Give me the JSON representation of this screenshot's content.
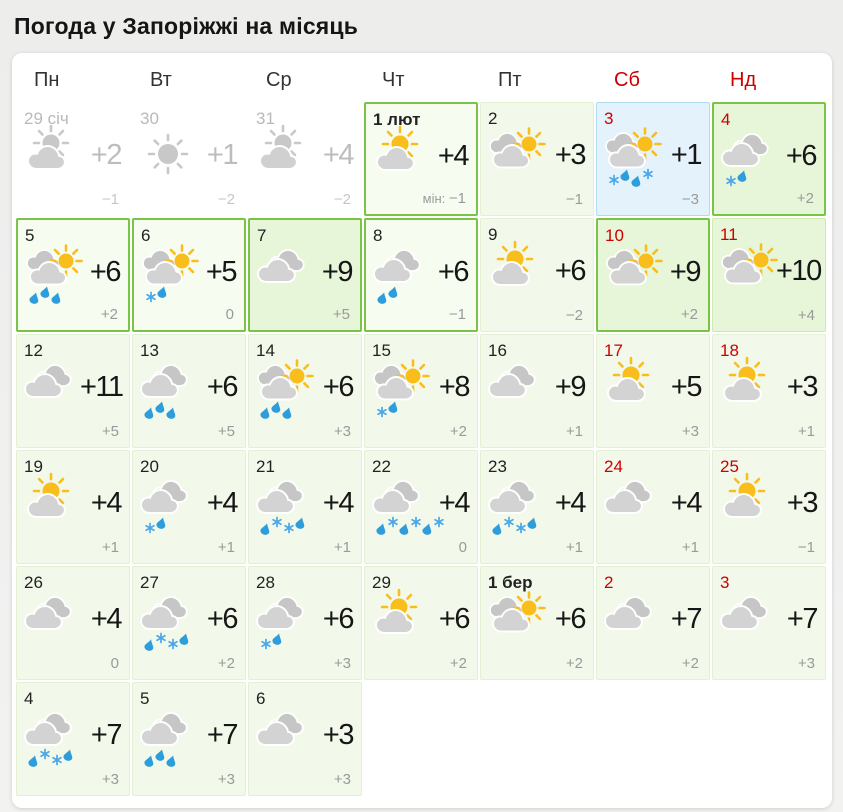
{
  "page": {
    "title": "Погода у Запоріжжі на місяць"
  },
  "colors": {
    "accent_red": "#cc0000",
    "highlight_green_border": "#79c447",
    "cell_green_bg": "#f2f9ea",
    "cell_green_strong_bg": "#e7f5d8",
    "today_blue_bg": "#e4f2fb",
    "sun_yellow": "#f9bd1c",
    "gray_icon": "#c8c8c8",
    "cloud_front": "#d3d3d3",
    "cloud_back": "#c6c6c6",
    "rain_blue": "#2d9ddb",
    "snow_blue": "#4aa7e9"
  },
  "calendar": {
    "day_headers": [
      {
        "label": "Пн",
        "weekend": false
      },
      {
        "label": "Вт",
        "weekend": false
      },
      {
        "label": "Ср",
        "weekend": false
      },
      {
        "label": "Чт",
        "weekend": false
      },
      {
        "label": "Пт",
        "weekend": false
      },
      {
        "label": "Сб",
        "weekend": true
      },
      {
        "label": "Нд",
        "weekend": true
      }
    ],
    "weeks": [
      [
        {
          "date": "29 січ",
          "style": "past",
          "weekend": false,
          "bold": false,
          "icon": "sun-cloud",
          "gray": true,
          "precip": [],
          "high": "+2",
          "low": "−1"
        },
        {
          "date": "30",
          "style": "past",
          "weekend": false,
          "bold": false,
          "icon": "sun",
          "gray": true,
          "precip": [],
          "high": "+1",
          "low": "−2"
        },
        {
          "date": "31",
          "style": "past",
          "weekend": false,
          "bold": false,
          "icon": "sun-cloud",
          "gray": true,
          "precip": [],
          "high": "+4",
          "low": "−2"
        },
        {
          "date": "1 лют",
          "style": "hl",
          "weekend": false,
          "bold": true,
          "icon": "sun-cloud",
          "gray": false,
          "precip": [],
          "high": "+4",
          "low": "−1",
          "low_prefix": "мін:"
        },
        {
          "date": "2",
          "style": "normal",
          "weekend": false,
          "bold": false,
          "icon": "cloud-sun",
          "gray": false,
          "precip": [],
          "high": "+3",
          "low": "−1"
        },
        {
          "date": "3",
          "style": "today",
          "weekend": true,
          "bold": false,
          "icon": "cloud-sun",
          "gray": false,
          "precip": [
            "snow",
            "drop",
            "drop",
            "snow"
          ],
          "high": "+1",
          "low": "−3"
        },
        {
          "date": "4",
          "style": "hlgreen",
          "weekend": true,
          "bold": false,
          "icon": "clouds",
          "gray": false,
          "precip": [
            "snow",
            "drop"
          ],
          "high": "+6",
          "low": "+2"
        }
      ],
      [
        {
          "date": "5",
          "style": "hl",
          "weekend": false,
          "bold": false,
          "icon": "cloud-sun",
          "gray": false,
          "precip": [
            "drop",
            "drop",
            "drop"
          ],
          "high": "+6",
          "low": "+2"
        },
        {
          "date": "6",
          "style": "hl",
          "weekend": false,
          "bold": false,
          "icon": "cloud-sun",
          "gray": false,
          "precip": [
            "snow",
            "drop"
          ],
          "high": "+5",
          "low": "0"
        },
        {
          "date": "7",
          "style": "hlgreen",
          "weekend": false,
          "bold": false,
          "icon": "clouds",
          "gray": false,
          "precip": [],
          "high": "+9",
          "low": "+5"
        },
        {
          "date": "8",
          "style": "hl",
          "weekend": false,
          "bold": false,
          "icon": "clouds",
          "gray": false,
          "precip": [
            "drop",
            "drop"
          ],
          "high": "+6",
          "low": "−1"
        },
        {
          "date": "9",
          "style": "normal",
          "weekend": false,
          "bold": false,
          "icon": "sun-cloud",
          "gray": false,
          "precip": [],
          "high": "+6",
          "low": "−2"
        },
        {
          "date": "10",
          "style": "hlgreen",
          "weekend": true,
          "bold": false,
          "icon": "cloud-sun",
          "gray": false,
          "precip": [],
          "high": "+9",
          "low": "+2"
        },
        {
          "date": "11",
          "style": "green",
          "weekend": true,
          "bold": false,
          "icon": "cloud-sun",
          "gray": false,
          "precip": [],
          "high": "+10",
          "low": "+4"
        }
      ],
      [
        {
          "date": "12",
          "style": "normal",
          "weekend": false,
          "bold": false,
          "icon": "clouds",
          "gray": false,
          "precip": [],
          "high": "+11",
          "low": "+5"
        },
        {
          "date": "13",
          "style": "normal",
          "weekend": false,
          "bold": false,
          "icon": "clouds",
          "gray": false,
          "precip": [
            "drop",
            "drop",
            "drop"
          ],
          "high": "+6",
          "low": "+5"
        },
        {
          "date": "14",
          "style": "normal",
          "weekend": false,
          "bold": false,
          "icon": "cloud-sun",
          "gray": false,
          "precip": [
            "drop",
            "drop",
            "drop"
          ],
          "high": "+6",
          "low": "+3"
        },
        {
          "date": "15",
          "style": "normal",
          "weekend": false,
          "bold": false,
          "icon": "cloud-sun",
          "gray": false,
          "precip": [
            "snow",
            "drop"
          ],
          "high": "+8",
          "low": "+2"
        },
        {
          "date": "16",
          "style": "normal",
          "weekend": false,
          "bold": false,
          "icon": "clouds",
          "gray": false,
          "precip": [],
          "high": "+9",
          "low": "+1"
        },
        {
          "date": "17",
          "style": "normal",
          "weekend": true,
          "bold": false,
          "icon": "sun-cloud",
          "gray": false,
          "precip": [],
          "high": "+5",
          "low": "+3"
        },
        {
          "date": "18",
          "style": "normal",
          "weekend": true,
          "bold": false,
          "icon": "sun-cloud",
          "gray": false,
          "precip": [],
          "high": "+3",
          "low": "+1"
        }
      ],
      [
        {
          "date": "19",
          "style": "normal",
          "weekend": false,
          "bold": false,
          "icon": "sun-cloud",
          "gray": false,
          "precip": [],
          "high": "+4",
          "low": "+1"
        },
        {
          "date": "20",
          "style": "normal",
          "weekend": false,
          "bold": false,
          "icon": "clouds",
          "gray": false,
          "precip": [
            "snow",
            "drop"
          ],
          "high": "+4",
          "low": "+1"
        },
        {
          "date": "21",
          "style": "normal",
          "weekend": false,
          "bold": false,
          "icon": "clouds",
          "gray": false,
          "precip": [
            "drop",
            "snow",
            "snow",
            "drop"
          ],
          "high": "+4",
          "low": "+1"
        },
        {
          "date": "22",
          "style": "normal",
          "weekend": false,
          "bold": false,
          "icon": "clouds",
          "gray": false,
          "precip": [
            "drop",
            "snow",
            "drop",
            "snow",
            "drop",
            "snow"
          ],
          "high": "+4",
          "low": "0"
        },
        {
          "date": "23",
          "style": "normal",
          "weekend": false,
          "bold": false,
          "icon": "clouds",
          "gray": false,
          "precip": [
            "drop",
            "snow",
            "snow",
            "drop"
          ],
          "high": "+4",
          "low": "+1"
        },
        {
          "date": "24",
          "style": "normal",
          "weekend": true,
          "bold": false,
          "icon": "clouds",
          "gray": false,
          "precip": [],
          "high": "+4",
          "low": "+1"
        },
        {
          "date": "25",
          "style": "normal",
          "weekend": true,
          "bold": false,
          "icon": "sun-cloud",
          "gray": false,
          "precip": [],
          "high": "+3",
          "low": "−1"
        }
      ],
      [
        {
          "date": "26",
          "style": "normal",
          "weekend": false,
          "bold": false,
          "icon": "clouds",
          "gray": false,
          "precip": [],
          "high": "+4",
          "low": "0"
        },
        {
          "date": "27",
          "style": "normal",
          "weekend": false,
          "bold": false,
          "icon": "clouds",
          "gray": false,
          "precip": [
            "drop",
            "snow",
            "snow",
            "drop"
          ],
          "high": "+6",
          "low": "+2"
        },
        {
          "date": "28",
          "style": "normal",
          "weekend": false,
          "bold": false,
          "icon": "clouds",
          "gray": false,
          "precip": [
            "snow",
            "drop"
          ],
          "high": "+6",
          "low": "+3"
        },
        {
          "date": "29",
          "style": "normal",
          "weekend": false,
          "bold": false,
          "icon": "sun-cloud",
          "gray": false,
          "precip": [],
          "high": "+6",
          "low": "+2"
        },
        {
          "date": "1 бер",
          "style": "normal",
          "weekend": false,
          "bold": true,
          "icon": "cloud-sun",
          "gray": false,
          "precip": [],
          "high": "+6",
          "low": "+2"
        },
        {
          "date": "2",
          "style": "normal",
          "weekend": true,
          "bold": false,
          "icon": "clouds",
          "gray": false,
          "precip": [],
          "high": "+7",
          "low": "+2"
        },
        {
          "date": "3",
          "style": "normal",
          "weekend": true,
          "bold": false,
          "icon": "clouds",
          "gray": false,
          "precip": [],
          "high": "+7",
          "low": "+3"
        }
      ],
      [
        {
          "date": "4",
          "style": "normal",
          "weekend": false,
          "bold": false,
          "icon": "clouds",
          "gray": false,
          "precip": [
            "drop",
            "snow",
            "snow",
            "drop"
          ],
          "high": "+7",
          "low": "+3"
        },
        {
          "date": "5",
          "style": "normal",
          "weekend": false,
          "bold": false,
          "icon": "clouds",
          "gray": false,
          "precip": [
            "drop",
            "drop",
            "drop"
          ],
          "high": "+7",
          "low": "+3"
        },
        {
          "date": "6",
          "style": "normal",
          "weekend": false,
          "bold": false,
          "icon": "clouds",
          "gray": false,
          "precip": [],
          "high": "+3",
          "low": "+3"
        },
        null,
        null,
        null,
        null
      ]
    ]
  }
}
